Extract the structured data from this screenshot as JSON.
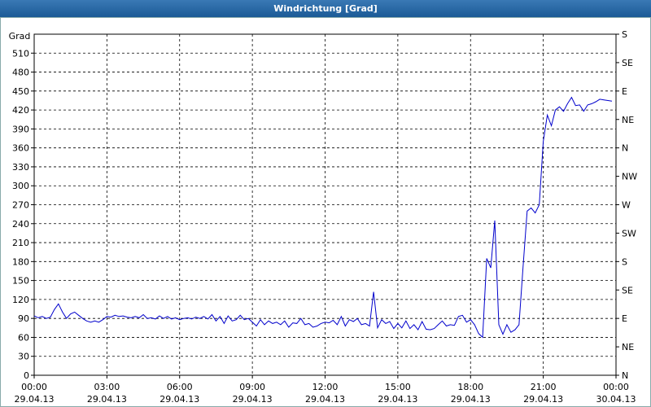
{
  "chart_data": {
    "type": "line",
    "title": "Windrichtung [Grad]",
    "y_label": "Grad",
    "xlim": [
      0,
      1440
    ],
    "xticks": [
      {
        "value": 0,
        "label": "00:00",
        "date": "29.04.13"
      },
      {
        "value": 180,
        "label": "03:00",
        "date": "29.04.13"
      },
      {
        "value": 360,
        "label": "06:00",
        "date": "29.04.13"
      },
      {
        "value": 540,
        "label": "09:00",
        "date": "29.04.13"
      },
      {
        "value": 720,
        "label": "12:00",
        "date": "29.04.13"
      },
      {
        "value": 900,
        "label": "15:00",
        "date": "29.04.13"
      },
      {
        "value": 1080,
        "label": "18:00",
        "date": "29.04.13"
      },
      {
        "value": 1260,
        "label": "21:00",
        "date": "29.04.13"
      },
      {
        "value": 1440,
        "label": "00:00",
        "date": "30.04.13"
      }
    ],
    "ylim": [
      0,
      540
    ],
    "yticks": [
      0,
      30,
      60,
      90,
      120,
      150,
      180,
      210,
      240,
      270,
      300,
      330,
      360,
      390,
      420,
      450,
      480,
      510
    ],
    "y2lim": [
      0,
      540
    ],
    "y2ticks": [
      {
        "value": 0,
        "label": "N"
      },
      {
        "value": 45,
        "label": "NE"
      },
      {
        "value": 90,
        "label": "E"
      },
      {
        "value": 135,
        "label": "SE"
      },
      {
        "value": 180,
        "label": "S"
      },
      {
        "value": 225,
        "label": "SW"
      },
      {
        "value": 270,
        "label": "W"
      },
      {
        "value": 315,
        "label": "NW"
      },
      {
        "value": 360,
        "label": "N"
      },
      {
        "value": 405,
        "label": "NE"
      },
      {
        "value": 450,
        "label": "E"
      },
      {
        "value": 495,
        "label": "SE"
      },
      {
        "value": 540,
        "label": "S"
      }
    ],
    "grid": true,
    "x": [
      0,
      10,
      20,
      30,
      40,
      50,
      60,
      70,
      80,
      90,
      100,
      110,
      120,
      130,
      140,
      150,
      160,
      170,
      180,
      190,
      200,
      210,
      220,
      230,
      240,
      250,
      260,
      270,
      280,
      290,
      300,
      310,
      320,
      330,
      340,
      350,
      360,
      370,
      380,
      390,
      400,
      410,
      420,
      430,
      440,
      450,
      460,
      470,
      480,
      490,
      500,
      510,
      520,
      530,
      540,
      550,
      560,
      570,
      580,
      590,
      600,
      610,
      620,
      630,
      640,
      650,
      660,
      670,
      680,
      690,
      700,
      710,
      720,
      730,
      740,
      750,
      760,
      770,
      780,
      790,
      800,
      810,
      820,
      830,
      840,
      850,
      860,
      870,
      880,
      890,
      900,
      910,
      920,
      930,
      940,
      950,
      960,
      970,
      980,
      990,
      1000,
      1010,
      1020,
      1030,
      1040,
      1050,
      1060,
      1070,
      1080,
      1090,
      1100,
      1110,
      1120,
      1130,
      1140,
      1150,
      1160,
      1170,
      1180,
      1190,
      1200,
      1210,
      1220,
      1230,
      1240,
      1250,
      1260,
      1270,
      1280,
      1290,
      1300,
      1310,
      1320,
      1330,
      1340,
      1350,
      1360,
      1370,
      1380,
      1390,
      1400,
      1410,
      1420,
      1430
    ],
    "series": [
      {
        "color": "#0000cc",
        "values": [
          94,
          91,
          93,
          90,
          92,
          104,
          113,
          100,
          90,
          97,
          100,
          95,
          90,
          86,
          84,
          86,
          84,
          88,
          93,
          92,
          95,
          93,
          94,
          92,
          91,
          93,
          91,
          96,
          90,
          91,
          89,
          94,
          90,
          93,
          89,
          91,
          88,
          90,
          91,
          89,
          92,
          90,
          93,
          89,
          96,
          86,
          93,
          82,
          94,
          86,
          88,
          95,
          88,
          90,
          84,
          78,
          88,
          80,
          86,
          82,
          84,
          80,
          86,
          76,
          83,
          82,
          90,
          80,
          82,
          76,
          78,
          82,
          84,
          83,
          87,
          80,
          93,
          78,
          88,
          85,
          90,
          80,
          82,
          78,
          132,
          75,
          88,
          82,
          85,
          74,
          82,
          75,
          86,
          74,
          80,
          72,
          85,
          73,
          72,
          74,
          80,
          86,
          78,
          80,
          79,
          93,
          95,
          84,
          88,
          80,
          66,
          60,
          185,
          170,
          245,
          80,
          65,
          80,
          68,
          72,
          80,
          172,
          260,
          265,
          257,
          270,
          370,
          412,
          395,
          420,
          425,
          418,
          430,
          440,
          427,
          428,
          418,
          428,
          430,
          433,
          437,
          436,
          435,
          434
        ]
      }
    ]
  }
}
